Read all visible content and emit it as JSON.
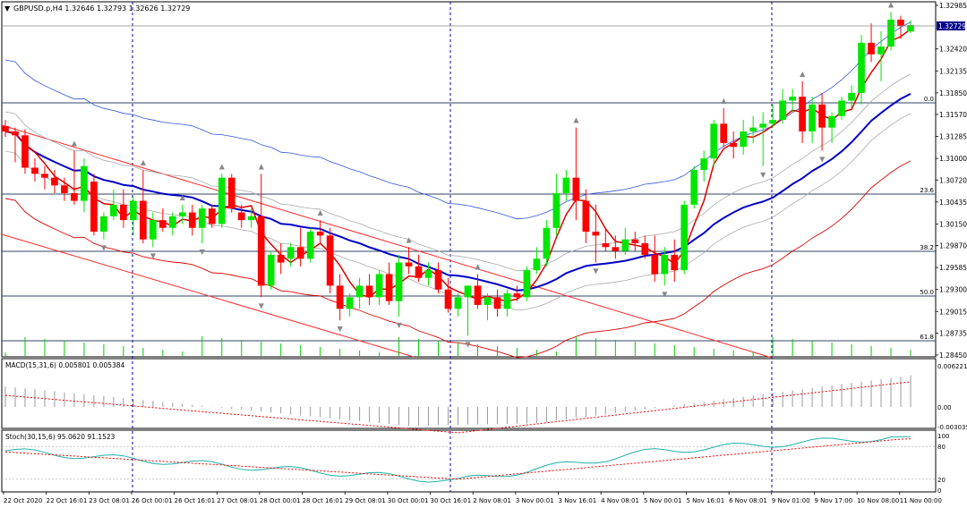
{
  "main_header": "GBPUSD.p,H4  1.32646 1.32793 1.32626 1.32729",
  "macd_header": "MACD(15,31,6) 0.005801 0.005384",
  "stoch_header": "Stoch(30,15,6) 95.0620 91.1523",
  "price_axis_labels": [
    "1.32985",
    "1.32420",
    "1.32135",
    "1.31850",
    "1.31570",
    "1.31285",
    "1.31000",
    "1.30720",
    "1.30435",
    "1.30150",
    "1.29870",
    "1.29585",
    "1.29300",
    "1.29015",
    "1.28735",
    "1.28450"
  ],
  "current_price": "1.32729",
  "fib_labels": [
    "0.0",
    "23.6",
    "38.2",
    "50.0",
    "61.8"
  ],
  "macd_axis_labels": [
    "0.006221",
    "0.00",
    "-0.003035"
  ],
  "stoch_axis_labels": [
    "100",
    "80",
    "20",
    "0"
  ],
  "time_labels": [
    "22 Oct 2020",
    "22 Oct 16:01",
    "23 Oct 08:01",
    "26 Oct 00:01",
    "26 Oct 16:01",
    "27 Oct 08:01",
    "28 Oct 00:01",
    "28 Oct 16:01",
    "29 Oct 08:01",
    "30 Oct 00:01",
    "30 Oct 16:01",
    "2 Nov 08:01",
    "3 Nov 00:01",
    "3 Nov 16:01",
    "4 Nov 08:01",
    "5 Nov 00:01",
    "5 Nov 16:01",
    "6 Nov 08:01",
    "9 Nov 01:00",
    "9 Nov 17:00",
    "10 Nov 08:00",
    "11 Nov 00:00"
  ],
  "colors": {
    "bull": "#00e600",
    "bear": "#ff0000",
    "grid": "#000000",
    "blue_ma": "#0000c8",
    "red_ma": "#dd0000",
    "envelope": "#aaaaaa",
    "upper_band": "#3355dd",
    "trend": "#ff0000",
    "fib": "#334466",
    "macd_hist": "#999999",
    "macd_signal": "#ff0000",
    "stoch_main": "#20b2aa",
    "stoch_signal": "#ff0000",
    "current_price_bg": "#00008b"
  },
  "chart_data": {
    "type": "candlestick",
    "ylim": [
      1.2845,
      1.32985
    ],
    "candles": [
      [
        1.3142,
        1.315,
        1.3128,
        1.3135
      ],
      [
        1.3135,
        1.314,
        1.3095,
        1.313
      ],
      [
        1.313,
        1.3138,
        1.308,
        1.3088
      ],
      [
        1.3088,
        1.31,
        1.307,
        1.308
      ],
      [
        1.308,
        1.309,
        1.306,
        1.3075
      ],
      [
        1.3075,
        1.3085,
        1.3055,
        1.3065
      ],
      [
        1.3065,
        1.3075,
        1.3045,
        1.3055
      ],
      [
        1.3055,
        1.311,
        1.304,
        1.3045
      ],
      [
        1.3045,
        1.31,
        1.303,
        1.309
      ],
      [
        1.307,
        1.308,
        1.3,
        1.3005
      ],
      [
        1.3005,
        1.303,
        1.2995,
        1.3025
      ],
      [
        1.3025,
        1.306,
        1.302,
        1.304
      ],
      [
        1.304,
        1.306,
        1.301,
        1.302
      ],
      [
        1.302,
        1.305,
        1.3,
        1.3045
      ],
      [
        1.3045,
        1.3085,
        1.299,
        1.2995
      ],
      [
        1.2995,
        1.303,
        1.2985,
        1.302
      ],
      [
        1.302,
        1.3035,
        1.3005,
        1.301
      ],
      [
        1.301,
        1.303,
        1.3,
        1.3025
      ],
      [
        1.3025,
        1.304,
        1.3015,
        1.303
      ],
      [
        1.303,
        1.304,
        1.3,
        1.301
      ],
      [
        1.301,
        1.304,
        1.299,
        1.3035
      ],
      [
        1.3035,
        1.304,
        1.301,
        1.3015
      ],
      [
        1.3015,
        1.308,
        1.301,
        1.3075
      ],
      [
        1.3075,
        1.308,
        1.303,
        1.3035
      ],
      [
        1.303,
        1.304,
        1.301,
        1.302
      ],
      [
        1.302,
        1.3035,
        1.301,
        1.3025
      ],
      [
        1.3025,
        1.308,
        1.292,
        1.2935
      ],
      [
        1.2935,
        1.298,
        1.293,
        1.2975
      ],
      [
        1.2975,
        1.299,
        1.295,
        1.2965
      ],
      [
        1.297,
        1.299,
        1.296,
        1.2985
      ],
      [
        1.2985,
        1.301,
        1.296,
        1.297
      ],
      [
        1.297,
        1.301,
        1.2965,
        1.3005
      ],
      [
        1.3005,
        1.302,
        1.299,
        1.3
      ],
      [
        1.3,
        1.301,
        1.2925,
        1.2935
      ],
      [
        1.2935,
        1.295,
        1.289,
        1.2905
      ],
      [
        1.2905,
        1.2925,
        1.2895,
        1.292
      ],
      [
        1.292,
        1.2945,
        1.2905,
        1.2935
      ],
      [
        1.2935,
        1.295,
        1.291,
        1.292
      ],
      [
        1.292,
        1.2955,
        1.291,
        1.295
      ],
      [
        1.295,
        1.2965,
        1.291,
        1.2915
      ],
      [
        1.2915,
        1.2975,
        1.2895,
        1.2965
      ],
      [
        1.2965,
        1.2985,
        1.295,
        1.296
      ],
      [
        1.296,
        1.2975,
        1.294,
        1.2945
      ],
      [
        1.2945,
        1.2965,
        1.2935,
        1.2955
      ],
      [
        1.2955,
        1.2965,
        1.2925,
        1.293
      ],
      [
        1.293,
        1.2945,
        1.29,
        1.2905
      ],
      [
        1.2905,
        1.2925,
        1.2895,
        1.292
      ],
      [
        1.292,
        1.2935,
        1.287,
        1.2935
      ],
      [
        1.2935,
        1.295,
        1.2905,
        1.291
      ],
      [
        1.291,
        1.2925,
        1.289,
        1.292
      ],
      [
        1.292,
        1.293,
        1.2895,
        1.2905
      ],
      [
        1.2905,
        1.293,
        1.2895,
        1.2925
      ],
      [
        1.2925,
        1.2935,
        1.2915,
        1.292
      ],
      [
        1.292,
        1.296,
        1.2915,
        1.2955
      ],
      [
        1.2955,
        1.2985,
        1.295,
        1.297
      ],
      [
        1.297,
        1.302,
        1.296,
        1.301
      ],
      [
        1.301,
        1.308,
        1.3,
        1.3055
      ],
      [
        1.3055,
        1.3085,
        1.3045,
        1.3075
      ],
      [
        1.3075,
        1.314,
        1.302,
        1.3045
      ],
      [
        1.3045,
        1.306,
        1.299,
        1.3005
      ],
      [
        1.3005,
        1.304,
        1.2965,
        1.3
      ],
      [
        1.299,
        1.301,
        1.298,
        1.2985
      ],
      [
        1.2985,
        1.3,
        1.297,
        1.298
      ],
      [
        1.298,
        1.301,
        1.2975,
        1.2995
      ],
      [
        1.2995,
        1.3005,
        1.298,
        1.299
      ],
      [
        1.299,
        1.3,
        1.297,
        1.2975
      ],
      [
        1.2975,
        1.3,
        1.294,
        1.295
      ],
      [
        1.295,
        1.2985,
        1.2935,
        1.2975
      ],
      [
        1.2975,
        1.2995,
        1.294,
        1.2955
      ],
      [
        1.2955,
        1.3045,
        1.295,
        1.304
      ],
      [
        1.304,
        1.309,
        1.3035,
        1.3085
      ],
      [
        1.3085,
        1.311,
        1.307,
        1.31
      ],
      [
        1.31,
        1.315,
        1.309,
        1.3145
      ],
      [
        1.3145,
        1.3165,
        1.3115,
        1.312
      ],
      [
        1.312,
        1.3135,
        1.31,
        1.3115
      ],
      [
        1.3115,
        1.315,
        1.3105,
        1.3135
      ],
      [
        1.3135,
        1.3155,
        1.312,
        1.314
      ],
      [
        1.314,
        1.316,
        1.309,
        1.3145
      ],
      [
        1.3145,
        1.317,
        1.314,
        1.315
      ],
      [
        1.315,
        1.319,
        1.3145,
        1.3175
      ],
      [
        1.3175,
        1.319,
        1.316,
        1.318
      ],
      [
        1.318,
        1.32,
        1.312,
        1.3135
      ],
      [
        1.3135,
        1.318,
        1.312,
        1.317
      ],
      [
        1.317,
        1.3185,
        1.311,
        1.314
      ],
      [
        1.314,
        1.316,
        1.312,
        1.3155
      ],
      [
        1.3155,
        1.318,
        1.315,
        1.3175
      ],
      [
        1.3175,
        1.3195,
        1.3165,
        1.3185
      ],
      [
        1.3185,
        1.326,
        1.317,
        1.325
      ],
      [
        1.325,
        1.3275,
        1.3225,
        1.3235
      ],
      [
        1.3235,
        1.3265,
        1.32,
        1.3245
      ],
      [
        1.3245,
        1.329,
        1.324,
        1.328
      ],
      [
        1.328,
        1.3285,
        1.3255,
        1.3272
      ],
      [
        1.32646,
        1.32793,
        1.32626,
        1.32729
      ]
    ]
  }
}
